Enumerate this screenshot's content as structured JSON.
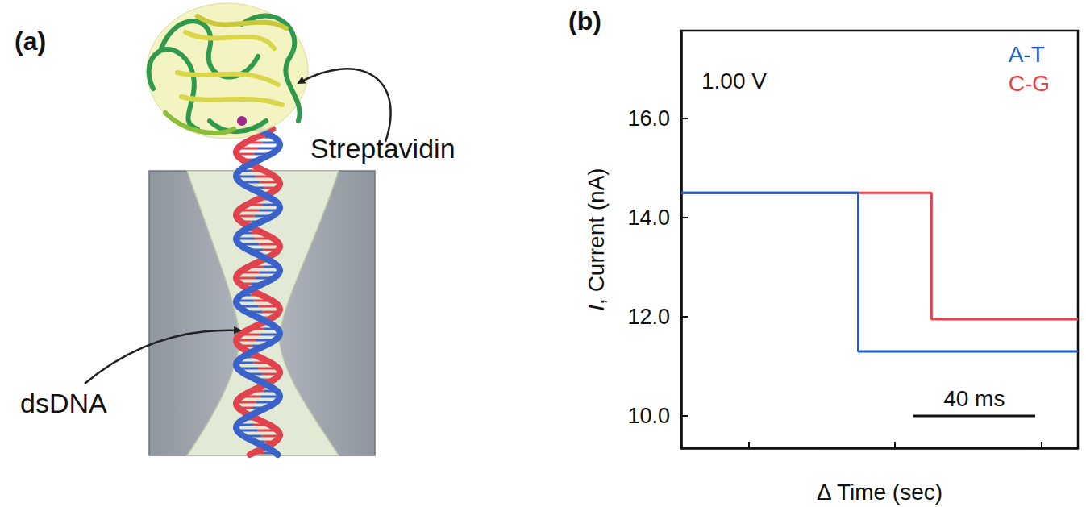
{
  "diagram": {
    "panel_label": "(a)",
    "labels": {
      "protein": "Streptavidin",
      "dna": "dsDNA"
    }
  },
  "chart_data": {
    "panel_label": "(b)",
    "type": "line",
    "annotation": "1.00 V",
    "x_label": "Δ Time (sec)",
    "y_label": "I, Current (nA)",
    "x": [
      0,
      58,
      82,
      130
    ],
    "series": [
      {
        "name": "A-T",
        "color": "#1f5ec4",
        "values": [
          14.5,
          11.3,
          11.3,
          11.3
        ]
      },
      {
        "name": "C-G",
        "color": "#e8414b",
        "values": [
          14.5,
          14.5,
          11.95,
          11.95
        ]
      }
    ],
    "line_style": "step",
    "xlim": [
      0,
      130
    ],
    "xticks": [
      22,
      70,
      118
    ],
    "ylim": [
      9.35,
      17.77
    ],
    "yticks": [
      {
        "value": 10,
        "label": "10.0"
      },
      {
        "value": 12,
        "label": "12.0"
      },
      {
        "value": 14,
        "label": "14.0"
      },
      {
        "value": 16,
        "label": "16.0"
      }
    ],
    "grid": false,
    "legend": "upper right",
    "tick_labels": "y",
    "scale_bar": {
      "x": [
        76,
        116
      ],
      "y": 10.0,
      "label": "40 ms"
    }
  }
}
